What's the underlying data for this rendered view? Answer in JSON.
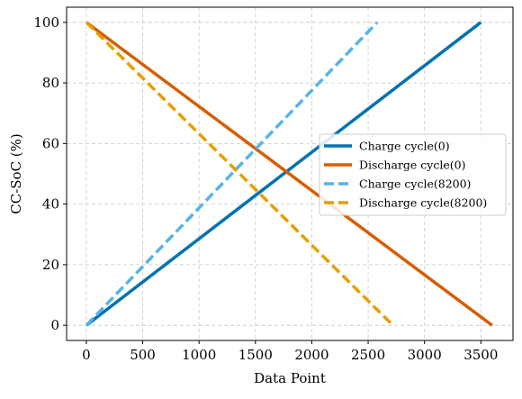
{
  "chart_data": {
    "type": "line",
    "title": "",
    "xlabel": "Data Point",
    "ylabel": "CC-SoC (%)",
    "xlim": [
      -175,
      3785
    ],
    "ylim": [
      -5,
      105
    ],
    "xticks": [
      0,
      500,
      1000,
      1500,
      2000,
      2500,
      3000,
      3500
    ],
    "yticks": [
      0,
      20,
      40,
      60,
      80,
      100
    ],
    "grid": true,
    "legend_position": "center-right",
    "series": [
      {
        "name": "Charge cycle(0)",
        "color": "#0072B2",
        "dash": "solid",
        "x": [
          0,
          3500
        ],
        "y": [
          0,
          100
        ]
      },
      {
        "name": "Discharge cycle(0)",
        "color": "#D55E00",
        "dash": "solid",
        "x": [
          0,
          3600
        ],
        "y": [
          100,
          0
        ]
      },
      {
        "name": "Charge cycle(8200)",
        "color": "#56B4E9",
        "dash": "dashed",
        "x": [
          0,
          2580
        ],
        "y": [
          0,
          100
        ]
      },
      {
        "name": "Discharge cycle(8200)",
        "color": "#E69F00",
        "dash": "dashed",
        "x": [
          0,
          2720
        ],
        "y": [
          100,
          0
        ]
      }
    ]
  }
}
